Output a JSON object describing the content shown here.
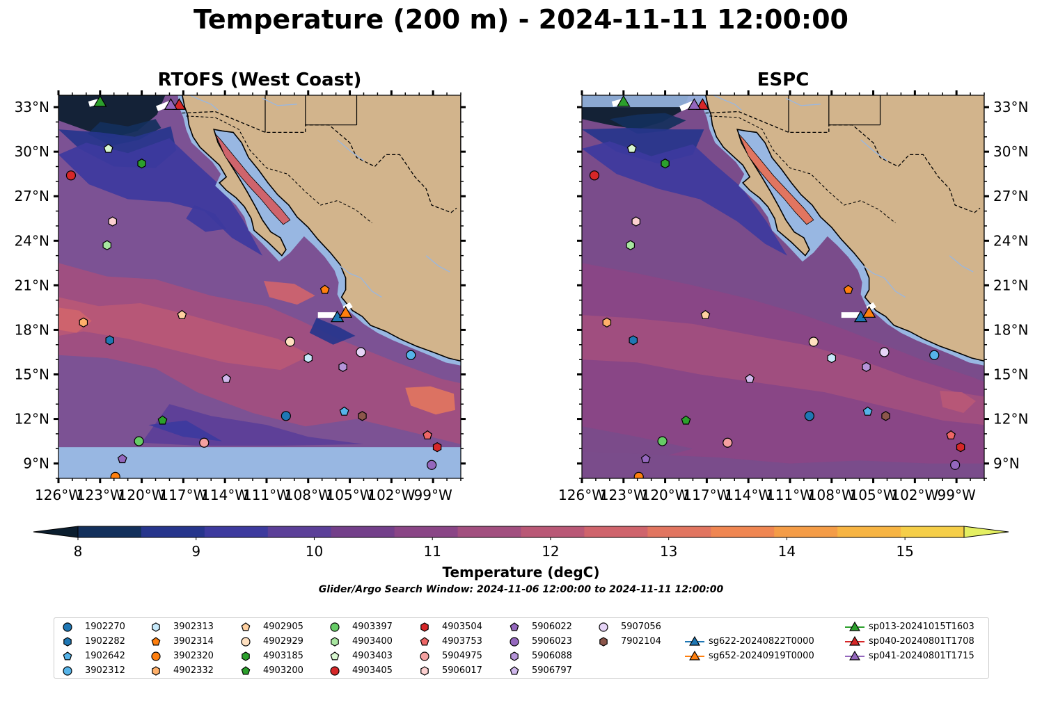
{
  "figure_title": "Temperature (200 m) - 2024-11-11 12:00:00",
  "maps": [
    {
      "title": "RTOFS (West Coast)"
    },
    {
      "title": "ESPC"
    }
  ],
  "axes": {
    "lon_ticks": [
      "126°W",
      "123°W",
      "120°W",
      "117°W",
      "114°W",
      "111°W",
      "108°W",
      "105°W",
      "102°W",
      "99°W"
    ],
    "lon_values": [
      -126,
      -123,
      -120,
      -117,
      -114,
      -111,
      -108,
      -105,
      -102,
      -99
    ],
    "lat_ticks": [
      "33°N",
      "30°N",
      "27°N",
      "24°N",
      "21°N",
      "18°N",
      "15°N",
      "12°N",
      "9°N"
    ],
    "lat_values": [
      33,
      30,
      27,
      24,
      21,
      18,
      15,
      12,
      9
    ],
    "lon_range": [
      -126,
      -97
    ],
    "lat_range": [
      8,
      33.8
    ]
  },
  "colorbar": {
    "label": "Temperature (degC)",
    "ticks": [
      "8",
      "9",
      "10",
      "11",
      "12",
      "13",
      "14",
      "15"
    ],
    "range": [
      8,
      15.5
    ],
    "extend": "both",
    "colors": [
      "#0b1e2f",
      "#13305c",
      "#26358c",
      "#3d3a9e",
      "#5b3f98",
      "#733f8a",
      "#8a4586",
      "#a24f7f",
      "#b95876",
      "#cf646c",
      "#e17560",
      "#ef8652",
      "#f49c47",
      "#f7b443",
      "#f5ce48",
      "#e4ef62"
    ]
  },
  "subtitle": "Glider/Argo Search Window: 2024-11-06 12:00:00 to 2024-11-11 12:00:00",
  "observations": [
    {
      "id": "1902270",
      "marker": "circle",
      "color": "#1f77b4",
      "lon": -109.6,
      "lat": 12.2
    },
    {
      "id": "1902282",
      "marker": "hexagon",
      "color": "#1f77b4",
      "lon": -122.3,
      "lat": 17.3
    },
    {
      "id": "1902642",
      "marker": "pentagon",
      "color": "#56b4e9",
      "lon": -105.4,
      "lat": 12.5
    },
    {
      "id": "3902312",
      "marker": "circle",
      "color": "#56b4e9",
      "lon": -100.6,
      "lat": 16.3
    },
    {
      "id": "3902313",
      "marker": "hexagon",
      "color": "#c6e9fa",
      "lon": -108.0,
      "lat": 16.1
    },
    {
      "id": "3902314",
      "marker": "pentagon",
      "color": "#ff7f0e",
      "lon": -106.8,
      "lat": 20.7
    },
    {
      "id": "3902320",
      "marker": "circle",
      "color": "#ff7f0e",
      "lon": -121.9,
      "lat": 8.1
    },
    {
      "id": "4902332",
      "marker": "hexagon",
      "color": "#ffb06a",
      "lon": -124.2,
      "lat": 18.5
    },
    {
      "id": "4902905",
      "marker": "pentagon",
      "color": "#ffd0a0",
      "lon": -117.1,
      "lat": 19.0
    },
    {
      "id": "4902929",
      "marker": "circle",
      "color": "#ffe0c0",
      "lon": -109.3,
      "lat": 17.2
    },
    {
      "id": "4903185",
      "marker": "hexagon",
      "color": "#2ca02c",
      "lon": -120.0,
      "lat": 29.2
    },
    {
      "id": "4903200",
      "marker": "pentagon",
      "color": "#2ca02c",
      "lon": -118.5,
      "lat": 11.9
    },
    {
      "id": "4903397",
      "marker": "circle",
      "color": "#66cc66",
      "lon": -120.2,
      "lat": 10.5
    },
    {
      "id": "4903400",
      "marker": "hexagon",
      "color": "#a8e6a0",
      "lon": -122.5,
      "lat": 23.7
    },
    {
      "id": "4903403",
      "marker": "pentagon",
      "color": "#d8f7d0",
      "lon": -122.4,
      "lat": 30.2
    },
    {
      "id": "4903405",
      "marker": "circle",
      "color": "#d62728",
      "lon": -125.1,
      "lat": 28.4
    },
    {
      "id": "4903504",
      "marker": "hexagon",
      "color": "#d62728",
      "lon": -98.7,
      "lat": 10.1
    },
    {
      "id": "4903753",
      "marker": "pentagon",
      "color": "#ee6666",
      "lon": -99.4,
      "lat": 10.9
    },
    {
      "id": "5904975",
      "marker": "circle",
      "color": "#f4a0a0",
      "lon": -115.5,
      "lat": 10.4
    },
    {
      "id": "5906017",
      "marker": "hexagon",
      "color": "#fcd0d0",
      "lon": -122.1,
      "lat": 25.3
    },
    {
      "id": "5906022",
      "marker": "pentagon",
      "color": "#9467bd",
      "lon": -121.4,
      "lat": 9.3
    },
    {
      "id": "5906023",
      "marker": "circle",
      "color": "#9467bd",
      "lon": -99.1,
      "lat": 8.9
    },
    {
      "id": "5906088",
      "marker": "hexagon",
      "color": "#b594d8",
      "lon": -105.5,
      "lat": 15.5
    },
    {
      "id": "5906797",
      "marker": "pentagon",
      "color": "#d0b8ec",
      "lon": -113.9,
      "lat": 14.7
    },
    {
      "id": "5907056",
      "marker": "circle",
      "color": "#e6d4f7",
      "lon": -104.2,
      "lat": 16.5
    },
    {
      "id": "7902104",
      "marker": "hexagon",
      "color": "#8c564b",
      "lon": -104.1,
      "lat": 12.2
    }
  ],
  "gliders": [
    {
      "id": "sg622-20240822T0000",
      "color": "#1f77b4",
      "lon": -105.9,
      "lat": 18.9
    },
    {
      "id": "sg652-20240919T0000",
      "color": "#ff7f0e",
      "lon": -105.3,
      "lat": 19.2
    },
    {
      "id": "sp013-20241015T1603",
      "color": "#2ca02c",
      "lon": -123.0,
      "lat": 33.4
    },
    {
      "id": "sp040-20240801T1708",
      "color": "#d62728",
      "lon": -117.3,
      "lat": 33.2
    },
    {
      "id": "sp041-20240801T1715",
      "color": "#9467bd",
      "lon": -117.9,
      "lat": 33.2
    }
  ]
}
